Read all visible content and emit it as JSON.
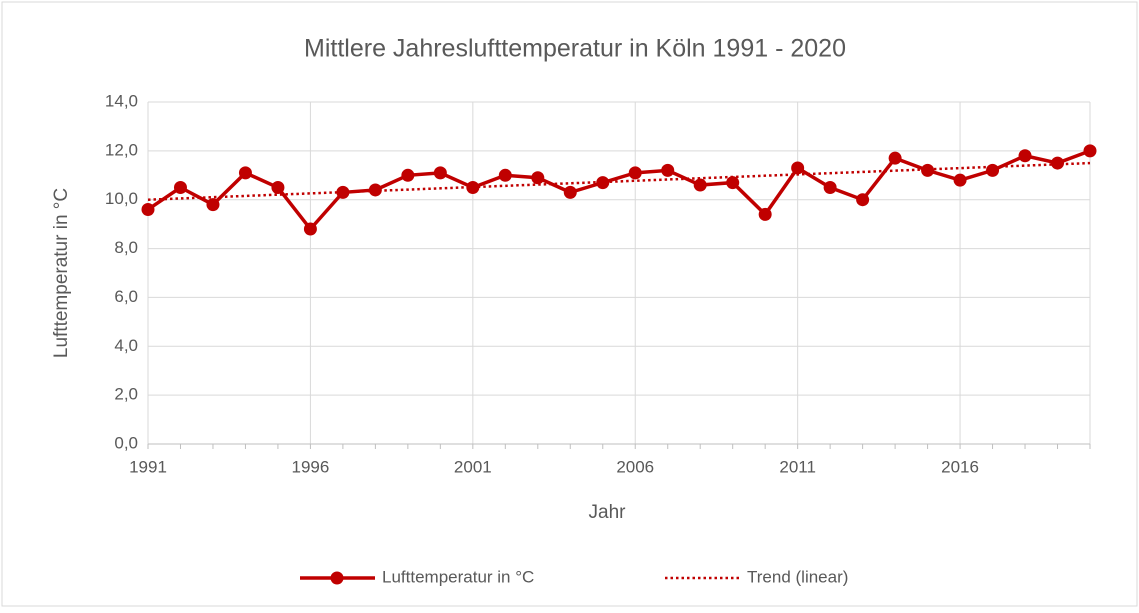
{
  "chart_data": {
    "type": "line",
    "title": "Mittlere Jahreslufttemperatur in Köln 1991 - 2020",
    "x_label": "Jahr",
    "y_label": "Lufttemperatur in °C",
    "x": [
      1991,
      1992,
      1993,
      1994,
      1995,
      1996,
      1997,
      1998,
      1999,
      2000,
      2001,
      2002,
      2003,
      2004,
      2005,
      2006,
      2007,
      2008,
      2009,
      2010,
      2011,
      2012,
      2013,
      2014,
      2015,
      2016,
      2017,
      2018,
      2019,
      2020
    ],
    "series": [
      {
        "name": "Lufttemperatur in °C",
        "color": "#c00000",
        "style": "solid",
        "marker": true,
        "values": [
          9.6,
          10.5,
          9.8,
          11.1,
          10.5,
          8.8,
          10.3,
          10.4,
          11.0,
          11.1,
          10.5,
          11.0,
          10.9,
          10.3,
          10.7,
          11.1,
          11.2,
          10.6,
          10.7,
          9.4,
          11.3,
          10.5,
          10.0,
          11.7,
          11.2,
          10.8,
          11.2,
          11.8,
          11.5,
          12.0
        ]
      },
      {
        "name": "Trend (linear)",
        "color": "#c00000",
        "style": "dotted",
        "marker": false,
        "x": [
          1991,
          2020
        ],
        "values": [
          10.0,
          11.5
        ]
      }
    ],
    "xlim": [
      1991,
      2020
    ],
    "xticks": [
      1991,
      1996,
      2001,
      2006,
      2011,
      2016
    ],
    "ylim": [
      0,
      14
    ],
    "yticks": [
      {
        "value": 0,
        "label": "0,0"
      },
      {
        "value": 2,
        "label": "2,0"
      },
      {
        "value": 4,
        "label": "4,0"
      },
      {
        "value": 6,
        "label": "6,0"
      },
      {
        "value": 8,
        "label": "8,0"
      },
      {
        "value": 10,
        "label": "10,0"
      },
      {
        "value": 12,
        "label": "12,0"
      },
      {
        "value": 14,
        "label": "14,0"
      }
    ],
    "grid": true,
    "legend": "bottom"
  }
}
